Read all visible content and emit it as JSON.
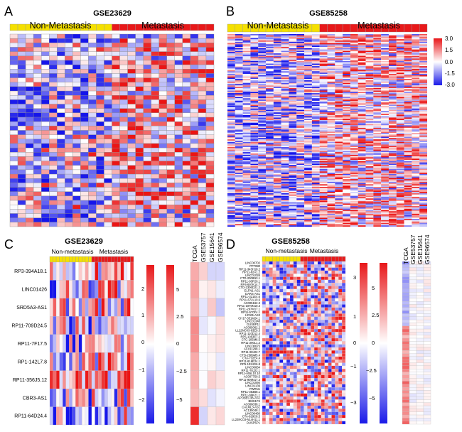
{
  "figure": {
    "description_panels": [
      "A",
      "B",
      "C",
      "D"
    ]
  },
  "chart_data": [
    {
      "type": "heatmap",
      "panel_label": "A",
      "title": "GSE23629",
      "group_labels": [
        "Non-Metastasis",
        "Metastasis"
      ],
      "group_colors": [
        "#f5e000",
        "#e8191a"
      ],
      "n_columns": 26,
      "n_group1": 13,
      "n_rows": 44
    },
    {
      "type": "heatmap",
      "panel_label": "B",
      "title": "GSE85258",
      "group_labels": [
        "Non-Metastasis",
        "Metastasis"
      ],
      "group_colors": [
        "#f5e000",
        "#e8191a"
      ],
      "n_columns": 26,
      "n_group1": 12,
      "n_rows": 150,
      "colorbar": {
        "ticks": [
          "3.0",
          "1.5",
          "0.0",
          "-1.5",
          "-3.0"
        ],
        "range": [
          -3,
          3
        ]
      }
    },
    {
      "type": "heatmap",
      "panel_label": "C",
      "title": "GSE23629",
      "group_labels": [
        "Non-metastasis",
        "Metastasis"
      ],
      "group_colors": [
        "#f5e000",
        "#e8191a"
      ],
      "n_columns": 26,
      "n_group1": 13,
      "genes": [
        "RP3-394A18.1",
        "LINC01426",
        "SRD5A3-AS1",
        "RP11-709D24.5",
        "RP11-7F17.5",
        "RP1-142L7.8",
        "RP11-356J5.12",
        "CBR3-AS1",
        "RP11-64D24.4"
      ],
      "colorbar_left": {
        "ticks": [
          "2",
          "1",
          "0",
          "−1",
          "−2"
        ],
        "range": [
          -2.5,
          2.5
        ]
      },
      "colorbar_right": {
        "ticks": [
          "5",
          "2.5",
          "0",
          "−2.5",
          "−5"
        ],
        "range": [
          -6,
          6
        ]
      },
      "datasets": [
        "TCGA",
        "GSE53757",
        "GSE15641",
        "GSE96574"
      ]
    },
    {
      "type": "heatmap",
      "panel_label": "D",
      "title": "GSE85258",
      "group_labels": [
        "Non-metastasis",
        "Metastasis"
      ],
      "group_colors": [
        "#f5e000",
        "#e8191a"
      ],
      "n_columns": 24,
      "n_group1": 11,
      "genes": [
        "LINC00702",
        "PP7080",
        "RP11-343H19.2",
        "RP11-82A1.2",
        "LINC01026",
        "CTD-2008N3.1",
        "RP11-93P20.1",
        "RP4-697K14.7",
        "CTD-2306D21.2",
        "ELFN1-AS1",
        "DARS-AS1",
        "RP11-321E4.6",
        "RP11-672L10.6",
        "AC005162.3",
        "RP11-1070N10.3",
        "RP11-297M17.1",
        "RP11-570F4.1",
        "HOXB-AS3",
        "CH17-351M24.1",
        "LINC01348",
        "GUSBP11",
        "AC005062.2",
        "LL22NC03-63E9.3",
        "RP11-110D12.4",
        "RP5-1053E7.2",
        "CTC-205M6.5",
        "RP11-290L1.2",
        "LINC00675",
        "AC011298.1",
        "RP11-90J22.7",
        "CTD-2589M5.4",
        "CTA-732E4.4",
        "RP11-816E24.1",
        "RP5-1024G6.8",
        "LINC00664",
        "RP11-78J22.1",
        "RP11-465L10.10",
        "AC007750.5",
        "RP11-909N17.3",
        "LINC01594",
        "LINC01139",
        "PWRN1",
        "RP11-363B8.1",
        "RP11-89K21.1",
        "APOBEC3B-AS1",
        "BMS1P4",
        "AC008038.1",
        "CALML3-AS1",
        "AC135048.1",
        "LINC00460",
        "CTA-929C8.5",
        "LL22NC03-N14H11.1",
        "DUSP5P1"
      ],
      "colorbar_left": {
        "ticks": [
          "3",
          "1",
          "0",
          "−1",
          "−3"
        ],
        "range": [
          -3.5,
          3.5
        ]
      },
      "colorbar_right": {
        "ticks": [
          "5",
          "2.5",
          "0",
          "−2.5",
          "−5"
        ],
        "range": [
          -6,
          6
        ]
      },
      "datasets": [
        "TCGA",
        "GSE53757",
        "GSE15641",
        "GSE96574"
      ]
    }
  ]
}
